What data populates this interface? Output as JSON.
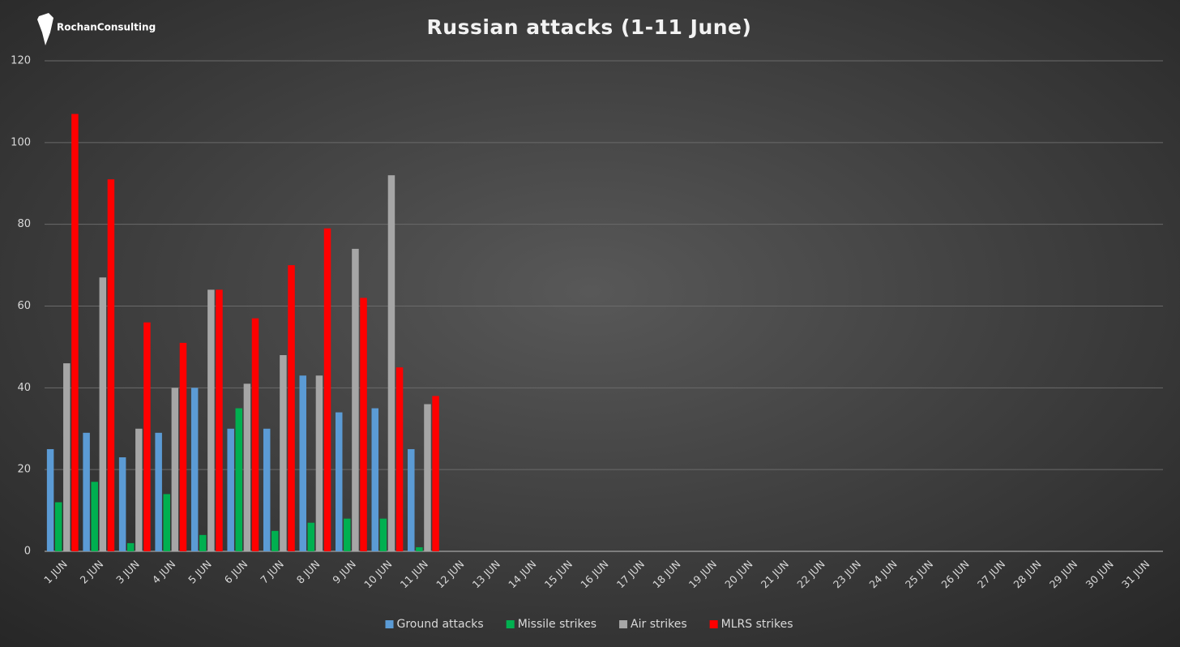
{
  "logo": "RochanConsulting",
  "chart_data": {
    "type": "bar",
    "title": "Russian attacks (1-11 June)",
    "categories": [
      "1 JUN",
      "2 JUN",
      "3 JUN",
      "4 JUN",
      "5 JUN",
      "6 JUN",
      "7 JUN",
      "8 JUN",
      "9 JUN",
      "10 JUN",
      "11 JUN",
      "12 JUN",
      "13 JUN",
      "14 JUN",
      "15 JUN",
      "16 JUN",
      "17 JUN",
      "18 JUN",
      "19 JUN",
      "20 JUN",
      "21 JUN",
      "22 JUN",
      "23 JUN",
      "24 JUN",
      "25 JUN",
      "26 JUN",
      "27 JUN",
      "28 JUN",
      "29 JUN",
      "30 JUN",
      "31 JUN"
    ],
    "series": [
      {
        "name": "Ground attacks",
        "color": "#5b9bd5",
        "values": [
          25,
          29,
          23,
          29,
          40,
          30,
          30,
          43,
          34,
          35,
          25,
          null,
          null,
          null,
          null,
          null,
          null,
          null,
          null,
          null,
          null,
          null,
          null,
          null,
          null,
          null,
          null,
          null,
          null,
          null,
          null
        ]
      },
      {
        "name": "Missile strikes",
        "color": "#00b050",
        "values": [
          12,
          17,
          2,
          14,
          4,
          35,
          5,
          7,
          8,
          8,
          1,
          null,
          null,
          null,
          null,
          null,
          null,
          null,
          null,
          null,
          null,
          null,
          null,
          null,
          null,
          null,
          null,
          null,
          null,
          null,
          null
        ]
      },
      {
        "name": "Air strikes",
        "color": "#a6a6a6",
        "values": [
          46,
          67,
          30,
          40,
          64,
          41,
          48,
          43,
          74,
          92,
          36,
          null,
          null,
          null,
          null,
          null,
          null,
          null,
          null,
          null,
          null,
          null,
          null,
          null,
          null,
          null,
          null,
          null,
          null,
          null,
          null
        ]
      },
      {
        "name": "MLRS strikes",
        "color": "#ff0000",
        "values": [
          107,
          91,
          56,
          51,
          64,
          57,
          70,
          79,
          62,
          45,
          38,
          null,
          null,
          null,
          null,
          null,
          null,
          null,
          null,
          null,
          null,
          null,
          null,
          null,
          null,
          null,
          null,
          null,
          null,
          null,
          null
        ]
      }
    ],
    "ylim": [
      0,
      120
    ],
    "yticks": [
      0,
      20,
      40,
      60,
      80,
      100,
      120
    ],
    "grid": true,
    "legend": "bottom"
  }
}
